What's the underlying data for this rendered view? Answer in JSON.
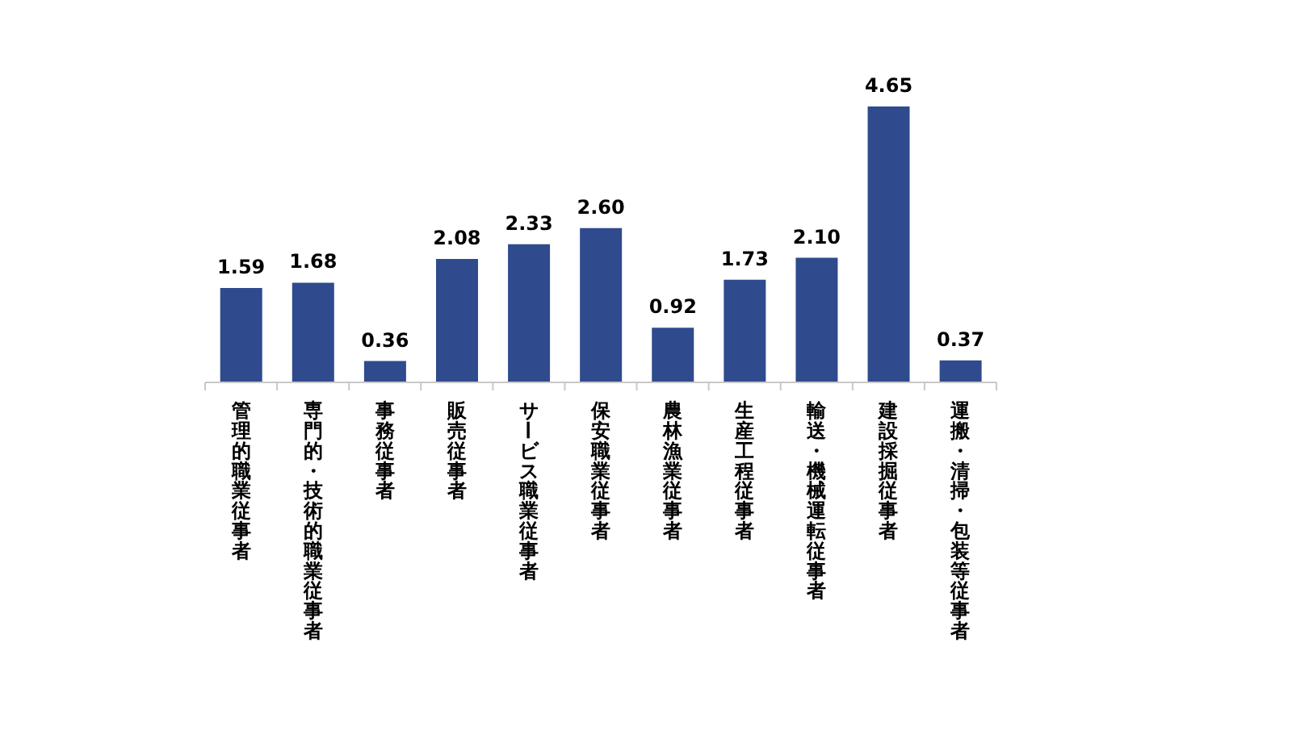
{
  "chart_data": {
    "type": "bar",
    "categories": [
      "管理的職業従事者",
      "専門的・技術的職業従事者",
      "事務従事者",
      "販売従事者",
      "サービス職業従事者",
      "保安職業従事者",
      "農林漁業従事者",
      "生産工程従事者",
      "輸送・機械運転従事者",
      "建設採掘従事者",
      "運搬・清掃・包装等従事者"
    ],
    "values": [
      1.59,
      1.68,
      0.36,
      2.08,
      2.33,
      2.6,
      0.92,
      1.73,
      2.1,
      4.65,
      0.37
    ],
    "value_labels": [
      "1.59",
      "1.68",
      "0.36",
      "2.08",
      "2.33",
      "2.60",
      "0.92",
      "1.73",
      "2.10",
      "4.65",
      "0.37"
    ],
    "color": "#2f4b8e"
  }
}
